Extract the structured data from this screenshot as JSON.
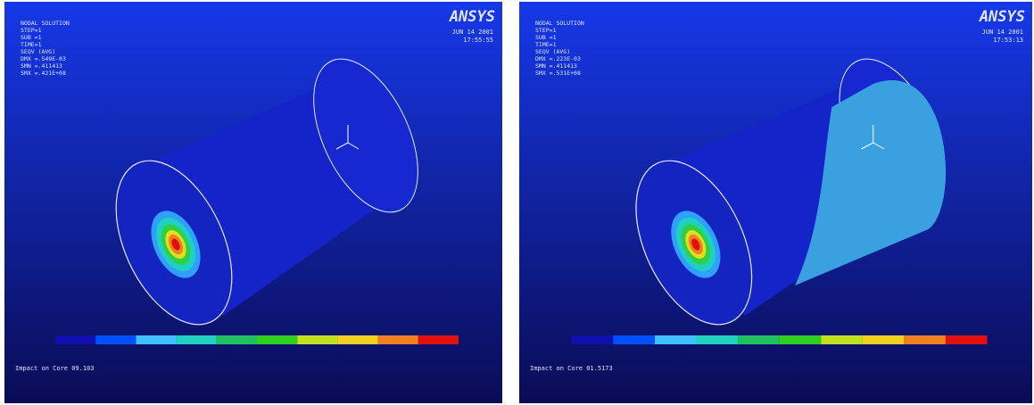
{
  "panels": [
    {
      "logo": "ANSYS",
      "date": "JUN 14 2001",
      "time": "17:55:55",
      "info": [
        "NODAL SOLUTION",
        "STEP=1",
        "SUB =1",
        "TIME=1",
        "SEQV (AVG)",
        "DMX =.549E-03",
        "SMN =.411413",
        "SMX =.421E+08"
      ],
      "footer": "Impact on Core 09.103"
    },
    {
      "logo": "ANSYS",
      "date": "JUN 14 2001",
      "time": "17:53:13",
      "info": [
        "NODAL SOLUTION",
        "STEP=1",
        "SUB =1",
        "TIME=1",
        "SEQV (AVG)",
        "DMX =.223E-03",
        "SMN =.411413",
        "SMX =.531E+08"
      ],
      "footer": "Impact on Core 01.5173"
    }
  ]
}
